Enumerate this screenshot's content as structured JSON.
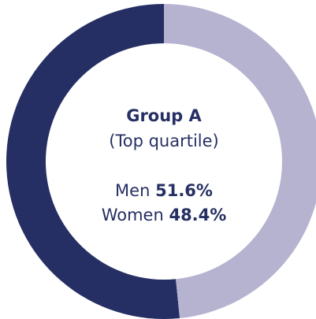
{
  "chart_data": {
    "type": "donut",
    "title": "Group A",
    "subtitle": "(Top quartile)",
    "series": [
      {
        "name": "Men",
        "color": "#262f63",
        "values": [
          51.6
        ],
        "value_labels": [
          "51.6%"
        ]
      },
      {
        "name": "Women",
        "color": "#b5b3d0",
        "values": [
          48.4
        ],
        "value_labels": [
          "48.4%"
        ]
      }
    ]
  }
}
